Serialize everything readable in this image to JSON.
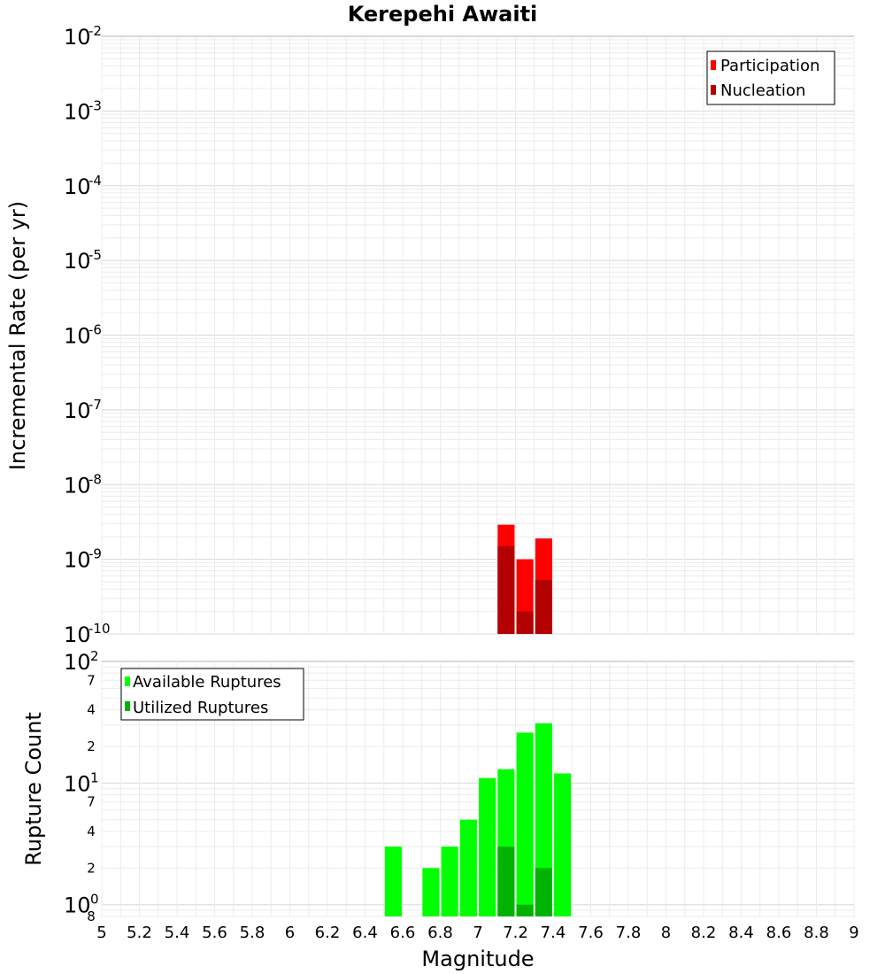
{
  "chart_data": [
    {
      "type": "bar",
      "title": "Kerepehi Awaiti",
      "ylabel": "Incremental Rate (per yr)",
      "yscale": "log",
      "ylim": [
        1e-10,
        0.01
      ],
      "xlim": [
        5,
        9
      ],
      "y_tick_labels": [
        {
          "base": "10",
          "exp": "-2"
        },
        {
          "base": "10",
          "exp": "-3"
        },
        {
          "base": "10",
          "exp": "-4"
        },
        {
          "base": "10",
          "exp": "-5"
        },
        {
          "base": "10",
          "exp": "-6"
        },
        {
          "base": "10",
          "exp": "-7"
        },
        {
          "base": "10",
          "exp": "-8"
        },
        {
          "base": "10",
          "exp": "-9"
        },
        {
          "base": "10",
          "exp": "-10"
        }
      ],
      "legend": {
        "position": "top-right",
        "entries": [
          "Participation",
          "Nucleation"
        ]
      },
      "series": [
        {
          "name": "Participation",
          "color": "#ff0000",
          "x": [
            7.15,
            7.25,
            7.35
          ],
          "values": [
            2.9e-09,
            1e-09,
            1.9e-09
          ]
        },
        {
          "name": "Nucleation",
          "color": "#b30000",
          "x": [
            7.15,
            7.25,
            7.35
          ],
          "values": [
            1.5e-09,
            2e-10,
            5.3e-10
          ]
        }
      ]
    },
    {
      "type": "bar",
      "ylabel": "Rupture Count",
      "xlabel": "Magnitude",
      "yscale": "log",
      "ylim": [
        0.8,
        100
      ],
      "xlim": [
        5,
        9
      ],
      "x_tick_labels": [
        "5",
        "5.2",
        "5.4",
        "5.6",
        "5.8",
        "6",
        "6.2",
        "6.4",
        "6.6",
        "6.8",
        "7",
        "7.2",
        "7.4",
        "7.6",
        "7.8",
        "8",
        "8.2",
        "8.4",
        "8.6",
        "8.8",
        "9"
      ],
      "y_tick_labels": [
        {
          "base": "10",
          "exp": "2"
        },
        {
          "base": "10",
          "exp": "1"
        },
        {
          "base": "10",
          "exp": "0"
        }
      ],
      "y_minor_labels": [
        {
          "label": "7",
          "value": 70
        },
        {
          "label": "4",
          "value": 40
        },
        {
          "label": "2",
          "value": 20
        },
        {
          "label": "7",
          "value": 7
        },
        {
          "label": "4",
          "value": 4
        },
        {
          "label": "2",
          "value": 2
        },
        {
          "label": "8",
          "value": 0.8
        }
      ],
      "legend": {
        "position": "top-left",
        "entries": [
          "Available Ruptures",
          "Utilized Ruptures"
        ]
      },
      "series": [
        {
          "name": "Available Ruptures",
          "color": "#00ff00",
          "x": [
            6.55,
            6.75,
            6.85,
            6.95,
            7.05,
            7.15,
            7.25,
            7.35,
            7.45
          ],
          "values": [
            3,
            2,
            3,
            5,
            11,
            13,
            26,
            31,
            12
          ]
        },
        {
          "name": "Utilized Ruptures",
          "color": "#00b300",
          "x": [
            7.15,
            7.25,
            7.35
          ],
          "values": [
            3,
            1,
            2
          ]
        }
      ]
    }
  ]
}
